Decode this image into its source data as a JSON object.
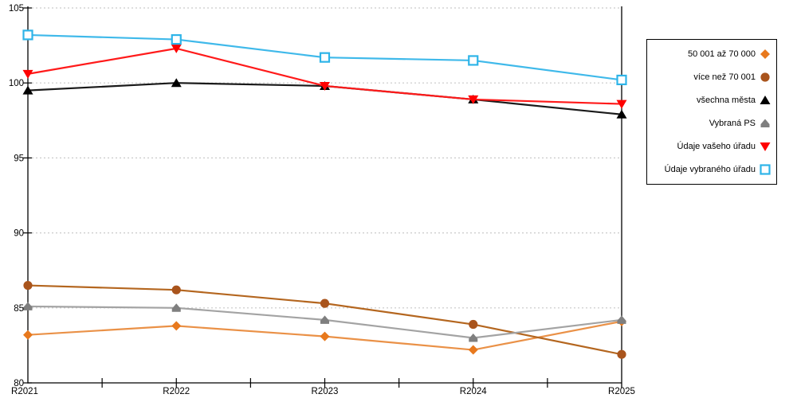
{
  "chart_data": {
    "type": "line",
    "categories": [
      "R2021",
      "R2022",
      "R2023",
      "R2024",
      "R2025"
    ],
    "series": [
      {
        "name": "50 001 až 70 000",
        "marker": "diamond",
        "color": "#E8791D",
        "line_color": "#EA9147",
        "values": [
          83.2,
          83.8,
          83.1,
          82.2,
          84.1
        ]
      },
      {
        "name": "více než 70 001",
        "marker": "circle",
        "color": "#A9541C",
        "line_color": "#B4661F",
        "values": [
          86.5,
          86.2,
          85.3,
          83.9,
          81.9
        ]
      },
      {
        "name": "všechna města",
        "marker": "triangle-up",
        "color": "#000000",
        "line_color": "#1A1A1A",
        "values": [
          99.5,
          100.0,
          99.8,
          98.9,
          97.9
        ]
      },
      {
        "name": "Vybraná PS",
        "marker": "pentagon",
        "color": "#7F7F7F",
        "line_color": "#A3A3A3",
        "values": [
          85.1,
          85.0,
          84.2,
          83.0,
          84.2
        ]
      },
      {
        "name": "Údaje vašeho úřadu",
        "marker": "triangle-down",
        "color": "#FF0000",
        "line_color": "#FF1A1A",
        "values": [
          100.6,
          102.3,
          99.8,
          98.9,
          98.6
        ]
      },
      {
        "name": "Údaje vybraného úřadu",
        "marker": "square-open",
        "color": "#2EB4E8",
        "line_color": "#3FB9EA",
        "values": [
          103.2,
          102.9,
          101.7,
          101.5,
          100.2
        ]
      }
    ],
    "ylim": [
      80,
      105
    ],
    "yticks": [
      105,
      100,
      95,
      90,
      85,
      80
    ],
    "xlabel": "",
    "ylabel": "",
    "title": "",
    "grid": "horizontal-dotted",
    "grid_color": "#C9C9C9",
    "axis_color": "#000000",
    "legend_position": "right"
  }
}
